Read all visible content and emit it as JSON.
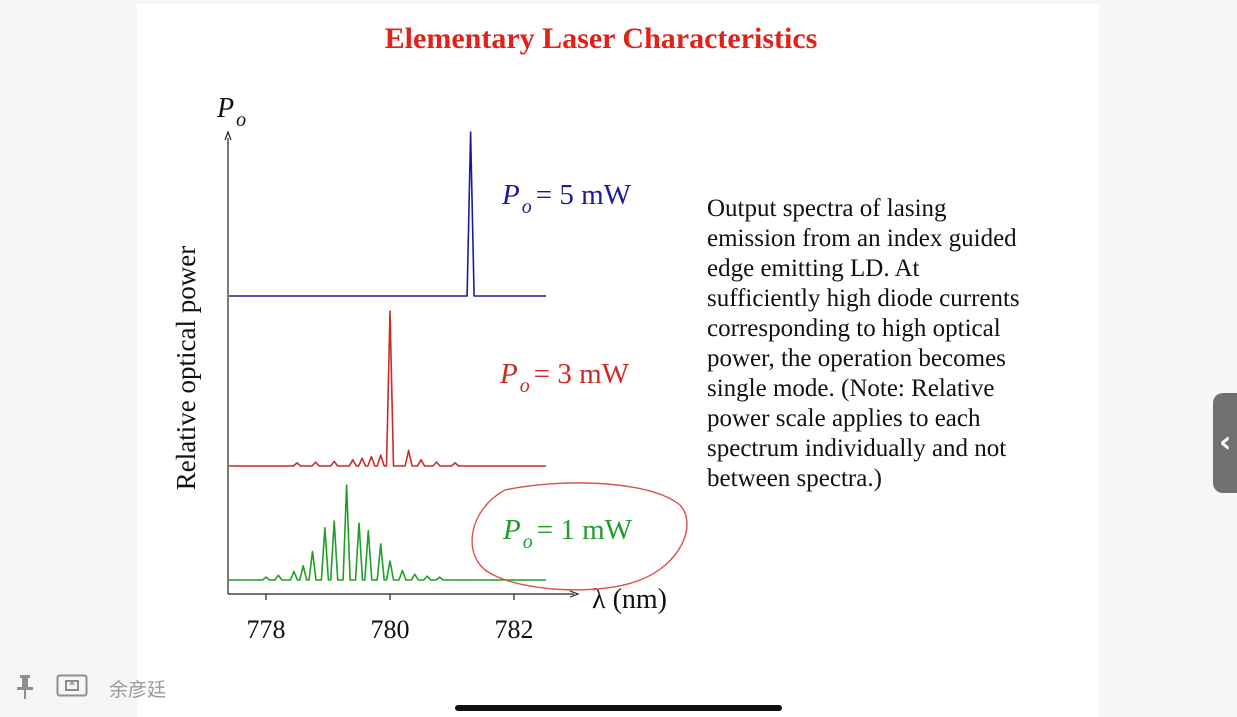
{
  "slide": {
    "title": "Elementary Laser Characteristics",
    "description_lines": [
      "Output spectra of lasing",
      "emission from an index guided",
      "edge emitting LD. At",
      "sufficiently high diode currents",
      "corresponding to high optical",
      "power, the operation becomes",
      "single mode. (Note: Relative",
      "power scale applies to each",
      "spectrum individually and not",
      "between spectra.)"
    ]
  },
  "chart_data": {
    "type": "line",
    "ylabel": "Relative optical power",
    "y_axis_symbol": "P",
    "y_axis_subscript": "o",
    "xlabel": "λ (nm)",
    "xlim": [
      777.3,
      782.6
    ],
    "xticks": [
      778,
      780,
      782
    ],
    "series": [
      {
        "name": "P_o = 5 mW",
        "label_symbol": "P",
        "label_subscript": "o",
        "label_rest": "= 5 mW",
        "color": "#1c1c9a",
        "peaks": [
          {
            "x": 781.3,
            "height": 1.0
          }
        ]
      },
      {
        "name": "P_o = 3 mW",
        "label_symbol": "P",
        "label_subscript": "o",
        "label_rest": "= 3 mW",
        "color": "#cc2b25",
        "peaks": [
          {
            "x": 778.5,
            "height": 0.02
          },
          {
            "x": 778.8,
            "height": 0.025
          },
          {
            "x": 779.1,
            "height": 0.03
          },
          {
            "x": 779.4,
            "height": 0.04
          },
          {
            "x": 779.55,
            "height": 0.05
          },
          {
            "x": 779.7,
            "height": 0.06
          },
          {
            "x": 779.85,
            "height": 0.07
          },
          {
            "x": 780.0,
            "height": 1.0
          },
          {
            "x": 780.3,
            "height": 0.1
          },
          {
            "x": 780.5,
            "height": 0.04
          },
          {
            "x": 780.75,
            "height": 0.025
          },
          {
            "x": 781.05,
            "height": 0.02
          }
        ]
      },
      {
        "name": "P_o = 1 mW",
        "label_symbol": "P",
        "label_subscript": "o",
        "label_rest": "= 1 mW",
        "color": "#1f9e2a",
        "peaks": [
          {
            "x": 778.0,
            "height": 0.03
          },
          {
            "x": 778.2,
            "height": 0.05
          },
          {
            "x": 778.45,
            "height": 0.09
          },
          {
            "x": 778.6,
            "height": 0.15
          },
          {
            "x": 778.75,
            "height": 0.3
          },
          {
            "x": 778.95,
            "height": 0.55
          },
          {
            "x": 779.1,
            "height": 0.62
          },
          {
            "x": 779.3,
            "height": 1.0
          },
          {
            "x": 779.5,
            "height": 0.6
          },
          {
            "x": 779.65,
            "height": 0.52
          },
          {
            "x": 779.85,
            "height": 0.38
          },
          {
            "x": 780.0,
            "height": 0.2
          },
          {
            "x": 780.2,
            "height": 0.1
          },
          {
            "x": 780.4,
            "height": 0.06
          },
          {
            "x": 780.6,
            "height": 0.04
          },
          {
            "x": 780.8,
            "height": 0.03
          }
        ]
      }
    ],
    "annotation": "red hand-drawn circle around the 1 mW label"
  },
  "footer": {
    "user_name": "余彦廷"
  },
  "icons": {
    "pin": "pin-icon",
    "screen": "screen-share-icon",
    "side_tab": "chevron-left-icon"
  }
}
